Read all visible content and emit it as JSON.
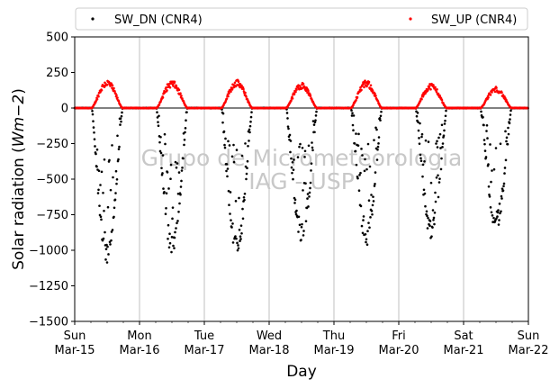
{
  "chart_data": {
    "type": "scatter",
    "title": "",
    "xlabel": "Day",
    "ylabel": "Solar radiation (Wm−2)",
    "ylabel_parts": {
      "main": "Solar radiation (",
      "unit": "Wm−2",
      "close": ")"
    },
    "ylim": [
      -1500,
      500
    ],
    "yticks": [
      500,
      250,
      0,
      -250,
      -500,
      -750,
      -1000,
      -1250,
      -1500
    ],
    "ytick_labels": [
      "500",
      "250",
      "0",
      "−250",
      "−500",
      "−750",
      "−1000",
      "−1250",
      "−1500"
    ],
    "xlim": [
      "2015-03-15",
      "2015-03-22"
    ],
    "xticks": [
      {
        "weekday": "Sun",
        "date": "Mar-15"
      },
      {
        "weekday": "Mon",
        "date": "Mar-16"
      },
      {
        "weekday": "Tue",
        "date": "Mar-17"
      },
      {
        "weekday": "Wed",
        "date": "Mar-18"
      },
      {
        "weekday": "Thu",
        "date": "Mar-19"
      },
      {
        "weekday": "Fri",
        "date": "Mar-20"
      },
      {
        "weekday": "Sat",
        "date": "Mar-21"
      },
      {
        "weekday": "Sun",
        "date": "Mar-22"
      }
    ],
    "grid": "vertical",
    "zero_line": true,
    "legend": {
      "placement": "top",
      "columns": 2
    },
    "watermark": [
      "Grupo de Micrometeorologia",
      "IAG - USP"
    ],
    "series": [
      {
        "name": "SW_DN (CNR4)",
        "color": "#000000",
        "peaks": [
          {
            "date": "Mar-15",
            "min": -1090
          },
          {
            "date": "Mar-16",
            "min": -1040
          },
          {
            "date": "Mar-17",
            "min": -1040
          },
          {
            "date": "Mar-18",
            "min": -960
          },
          {
            "date": "Mar-19",
            "min": -970
          },
          {
            "date": "Mar-20",
            "min": -920
          },
          {
            "date": "Mar-21",
            "min": -860
          }
        ]
      },
      {
        "name": "SW_UP (CNR4)",
        "color": "#ff0000",
        "peaks": [
          {
            "date": "Mar-15",
            "max": 200
          },
          {
            "date": "Mar-16",
            "max": 195
          },
          {
            "date": "Mar-17",
            "max": 200
          },
          {
            "date": "Mar-18",
            "max": 180
          },
          {
            "date": "Mar-19",
            "max": 195
          },
          {
            "date": "Mar-20",
            "max": 175
          },
          {
            "date": "Mar-21",
            "max": 150
          }
        ]
      }
    ]
  }
}
